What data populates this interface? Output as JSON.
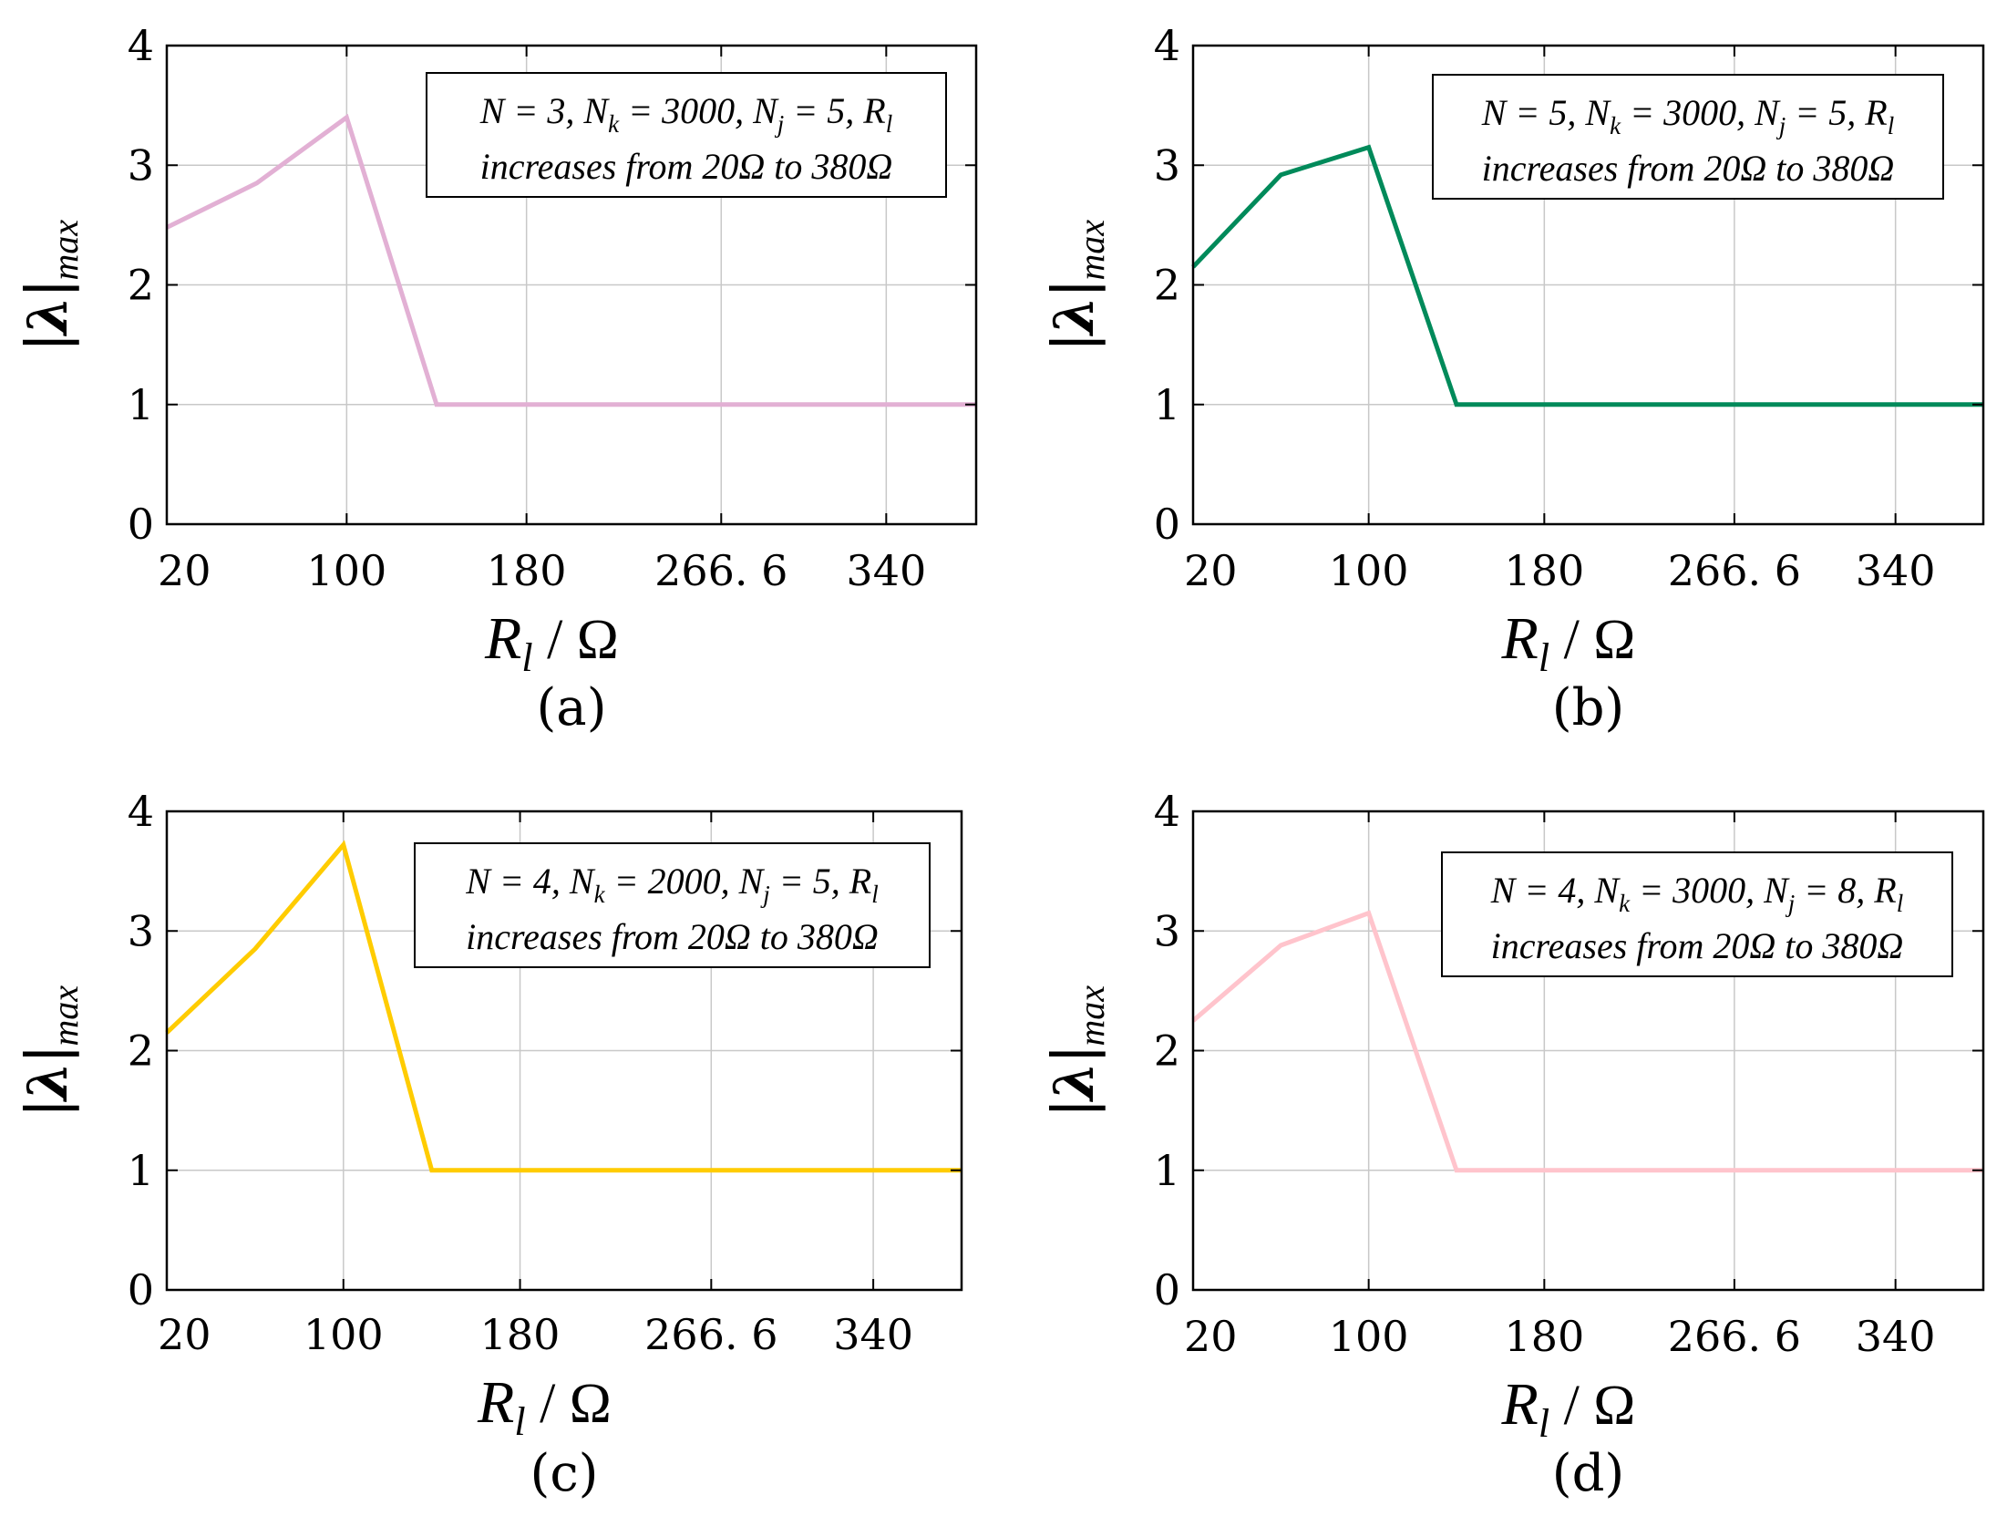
{
  "figure": {
    "x_axis_label": {
      "symbol": "R",
      "subscript": "l",
      "unit": "/ Ω"
    },
    "y_axis_label": {
      "symbol": "λ",
      "subscript": "max"
    },
    "x_ticks": [
      20,
      100,
      180,
      266.6,
      340
    ],
    "x_tick_labels": [
      "20",
      "100",
      "180",
      "266. 6",
      "340"
    ],
    "y_ticks": [
      0,
      1,
      2,
      3,
      4
    ],
    "y_tick_labels": [
      "0",
      "1",
      "2",
      "3",
      "4"
    ]
  },
  "chart_data": [
    {
      "type": "line",
      "panel": "a",
      "caption": "(a)",
      "color": "#e2b0d4",
      "xlabel": "R_l / Ω",
      "ylabel": "|λ|max",
      "xlim": [
        20,
        380
      ],
      "ylim": [
        0,
        4
      ],
      "grid": true,
      "annotation": {
        "line1": {
          "N": "3",
          "Nk": "3000",
          "Nj": "5"
        },
        "line2": "increases from 20Ω to 380Ω"
      },
      "series": [
        {
          "name": "|λ|max",
          "x": [
            20,
            60,
            100,
            140,
            180,
            220,
            260,
            300,
            340,
            380
          ],
          "values": [
            2.48,
            2.85,
            3.4,
            1,
            1,
            1,
            1,
            1,
            1,
            1
          ]
        }
      ]
    },
    {
      "type": "line",
      "panel": "b",
      "caption": "(b)",
      "color": "#008a5a",
      "xlabel": "R_l / Ω",
      "ylabel": "|λ|max",
      "xlim": [
        20,
        380
      ],
      "ylim": [
        0,
        4
      ],
      "grid": true,
      "annotation": {
        "line1": {
          "N": "5",
          "Nk": "3000",
          "Nj": "5"
        },
        "line2": "increases from 20Ω to 380Ω"
      },
      "series": [
        {
          "name": "|λ|max",
          "x": [
            20,
            60,
            100,
            140,
            180,
            220,
            260,
            300,
            340,
            380
          ],
          "values": [
            2.15,
            2.92,
            3.15,
            1,
            1,
            1,
            1,
            1,
            1,
            1
          ]
        }
      ]
    },
    {
      "type": "line",
      "panel": "c",
      "caption": "(c)",
      "color": "#ffcc00",
      "xlabel": "R_l / Ω",
      "ylabel": "|λ|max",
      "xlim": [
        20,
        380
      ],
      "ylim": [
        0,
        4
      ],
      "grid": true,
      "annotation": {
        "line1": {
          "N": "4",
          "Nk": "2000",
          "Nj": "5"
        },
        "line2": "increases from 20Ω to 380Ω"
      },
      "series": [
        {
          "name": "|λ|max",
          "x": [
            20,
            60,
            100,
            140,
            180,
            220,
            260,
            300,
            340,
            380
          ],
          "values": [
            2.15,
            2.85,
            3.72,
            1,
            1,
            1,
            1,
            1,
            1,
            1
          ]
        }
      ]
    },
    {
      "type": "line",
      "panel": "d",
      "caption": "(d)",
      "color": "#ffc4cc",
      "xlabel": "R_l / Ω",
      "ylabel": "|λ|max",
      "xlim": [
        20,
        380
      ],
      "ylim": [
        0,
        4
      ],
      "grid": true,
      "annotation": {
        "line1": {
          "N": "4",
          "Nk": "3000",
          "Nj": "8"
        },
        "line2": "increases from 20Ω to 380Ω"
      },
      "series": [
        {
          "name": "|λ|max",
          "x": [
            20,
            60,
            100,
            140,
            180,
            220,
            260,
            300,
            340,
            380
          ],
          "values": [
            2.25,
            2.88,
            3.15,
            1,
            1,
            1,
            1,
            1,
            1,
            1
          ]
        }
      ]
    }
  ]
}
